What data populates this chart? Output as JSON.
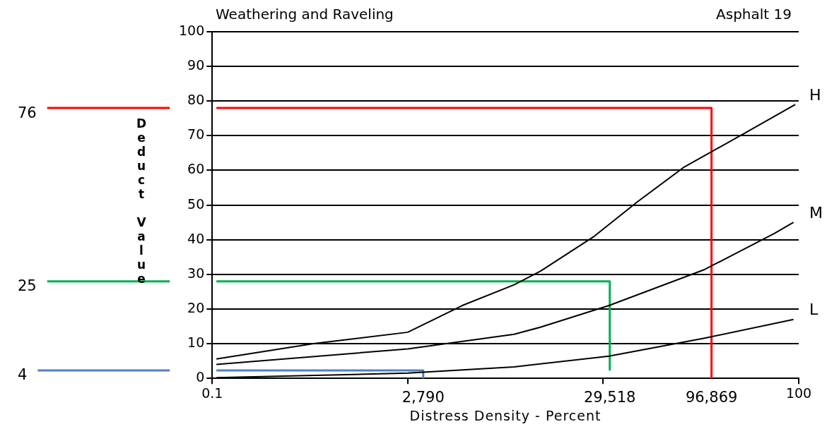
{
  "chart_data": {
    "type": "line",
    "title": "Weathering and Raveling",
    "subtitle": "Asphalt 19",
    "xlabel": "Distress Density - Percent",
    "ylabel": "Deduct Value",
    "log": "x",
    "xlim": [
      0.1,
      100
    ],
    "xticks": [
      0.1,
      {
        "value": 1,
        "label": null
      },
      {
        "value": 10,
        "label": null
      },
      100
    ],
    "ylim": [
      0,
      100
    ],
    "yticks": [
      0,
      10,
      20,
      30,
      40,
      50,
      60,
      70,
      80,
      90,
      100
    ],
    "grid": "y",
    "legend": false,
    "series": [
      {
        "name": "H",
        "color": "#000000",
        "x": [
          0.105,
          0.33,
          1,
          1.9,
          3.5,
          4.8,
          9,
          15,
          26,
          54,
          96
        ],
        "values": [
          5.6,
          10,
          13.3,
          21,
          27,
          31,
          41,
          51,
          61,
          71,
          79
        ]
      },
      {
        "name": "M",
        "color": "#000000",
        "x": [
          0.105,
          1,
          3.5,
          4.8,
          10.7,
          33,
          75,
          94
        ],
        "values": [
          4,
          8.5,
          12.7,
          14.8,
          21,
          31.4,
          41.8,
          45
        ]
      },
      {
        "name": "L",
        "color": "#000000",
        "x": [
          0.105,
          1,
          3.5,
          10.7,
          33,
          94
        ],
        "values": [
          0.2,
          1.5,
          3.3,
          6.4,
          11.6,
          17
        ]
      },
      {
        "color": "#ff0000",
        "x": [
          0.105,
          35.8,
          35.8
        ],
        "values": [
          78,
          78,
          0
        ]
      },
      {
        "color": "#00b050",
        "x": [
          0.105,
          10.8,
          10.8
        ],
        "values": [
          28,
          28,
          2.5
        ]
      },
      {
        "color": "#4f81bd",
        "x": [
          0.105,
          1.2,
          1.2
        ],
        "values": [
          2.3,
          2.3,
          0
        ]
      }
    ],
    "annotations": [
      "76",
      "25",
      "4",
      {
        "text": "2,790",
        "x": 1.2,
        "y": 0
      },
      {
        "text": "29,518",
        "x": 10.8,
        "y": 2.5
      },
      {
        "text": "96,869",
        "x": 35.8,
        "y": 0
      }
    ]
  }
}
